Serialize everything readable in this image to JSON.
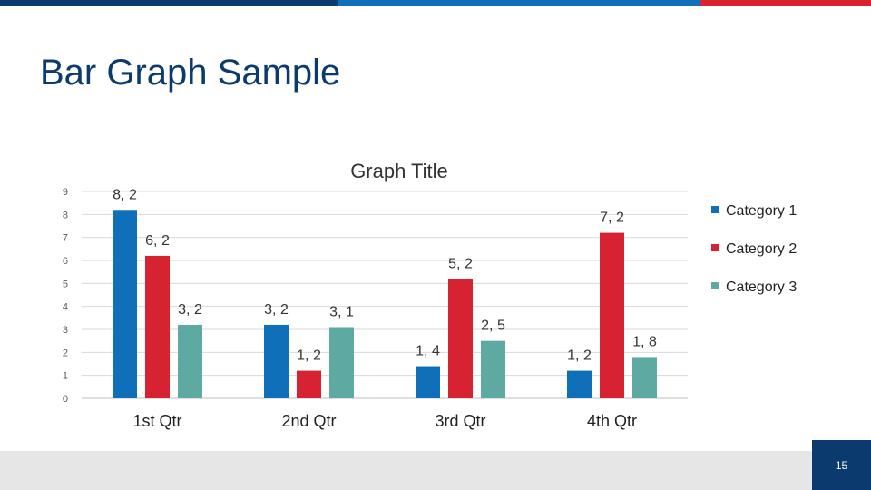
{
  "slide": {
    "title": "Bar Graph Sample",
    "page_number": "15"
  },
  "colors": {
    "top_bar": [
      "#0b3b6e",
      "#0f6fb8",
      "#d72331"
    ],
    "title": "#0b3b6e",
    "page_box": "#0b3b6e",
    "footer": "#e6e6e6"
  },
  "chart_data": {
    "type": "bar",
    "title": "Graph Title",
    "categories": [
      "1st Qtr",
      "2nd Qtr",
      "3rd Qtr",
      "4th Qtr"
    ],
    "series": [
      {
        "name": "Category 1",
        "color": "#0f6fb8",
        "values": [
          8.2,
          3.2,
          1.4,
          1.2
        ]
      },
      {
        "name": "Category 2",
        "color": "#d72331",
        "values": [
          6.2,
          1.2,
          5.2,
          7.2
        ]
      },
      {
        "name": "Category 3",
        "color": "#5fa9a3",
        "values": [
          3.2,
          3.1,
          2.5,
          1.8
        ]
      }
    ],
    "data_labels": [
      [
        "8, 2",
        "3, 2",
        "1, 4",
        "1, 2"
      ],
      [
        "6, 2",
        "1, 2",
        "5, 2",
        "7, 2"
      ],
      [
        "3, 2",
        "3, 1",
        "2, 5",
        "1, 8"
      ]
    ],
    "ylim": [
      0,
      9
    ],
    "yticks": [
      "0",
      "1",
      "2",
      "3",
      "4",
      "5",
      "6",
      "7",
      "8",
      "9"
    ],
    "grid": true,
    "legend_position": "right"
  }
}
